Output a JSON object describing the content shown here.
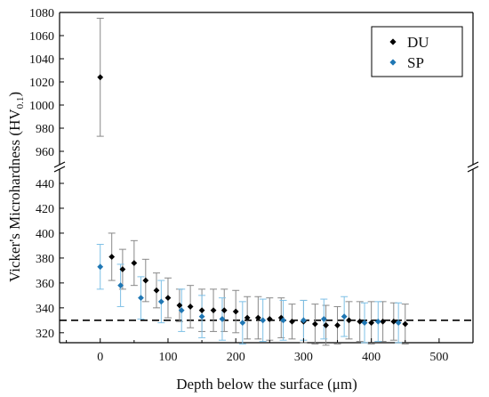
{
  "chart_data": {
    "type": "scatter",
    "title": "",
    "xlabel": "Depth below the surface (μm)",
    "ylabel_main": "Vicker's Microhardness (HV",
    "ylabel_sub": "0.1",
    "ylabel_close": ")",
    "xlim": [
      -60,
      550
    ],
    "ylim_lower": [
      312,
      450
    ],
    "ylim_upper": [
      950,
      1080
    ],
    "axis_break": true,
    "x_ticks": [
      0,
      100,
      200,
      300,
      400,
      500
    ],
    "y_ticks_lower": [
      320,
      340,
      360,
      380,
      400,
      420,
      440
    ],
    "y_ticks_upper": [
      960,
      980,
      1000,
      1020,
      1040,
      1060,
      1080
    ],
    "reference_line_y": 330,
    "legend_position": "top-right",
    "series": [
      {
        "name": "DU",
        "color": "#000000",
        "error_color": "#888888",
        "x": [
          0,
          17,
          33,
          50,
          67,
          83,
          100,
          117,
          133,
          150,
          167,
          183,
          200,
          217,
          233,
          250,
          267,
          283,
          300,
          317,
          333,
          350,
          367,
          383,
          400,
          417,
          433,
          450
        ],
        "y": [
          1024,
          381,
          371,
          376,
          362,
          354,
          348,
          342,
          341,
          338,
          338,
          338,
          337,
          332,
          332,
          331,
          332,
          329,
          329,
          327,
          326,
          326,
          330,
          329,
          328,
          329,
          329,
          327
        ],
        "err": [
          51,
          19,
          16,
          18,
          17,
          14,
          16,
          13,
          17,
          17,
          17,
          17,
          17,
          17,
          17,
          17,
          16,
          14,
          17,
          16,
          16,
          15,
          15,
          16,
          17,
          16,
          15,
          16
        ],
        "x_plot": [
          0,
          17,
          null,
          50,
          75,
          null,
          110,
          null,
          140,
          null,
          170,
          null,
          205,
          null,
          230,
          null,
          258,
          null,
          290,
          317,
          null,
          350,
          null,
          375,
          null,
          410,
          null,
          468
        ]
      },
      {
        "name": "SP",
        "color": "#1f77b4",
        "error_color": "#7ec0e6",
        "x": [
          0,
          30,
          60,
          90,
          120,
          150,
          180,
          210,
          240,
          270,
          300,
          330,
          360,
          390,
          410,
          440
        ],
        "y": [
          373,
          358,
          348,
          345,
          338,
          333,
          331,
          328,
          330,
          330,
          330,
          331,
          333,
          328,
          329,
          328
        ],
        "err": [
          18,
          17,
          17,
          17,
          17,
          17,
          17,
          17,
          17,
          16,
          16,
          16,
          16,
          16,
          16,
          16
        ]
      }
    ]
  }
}
